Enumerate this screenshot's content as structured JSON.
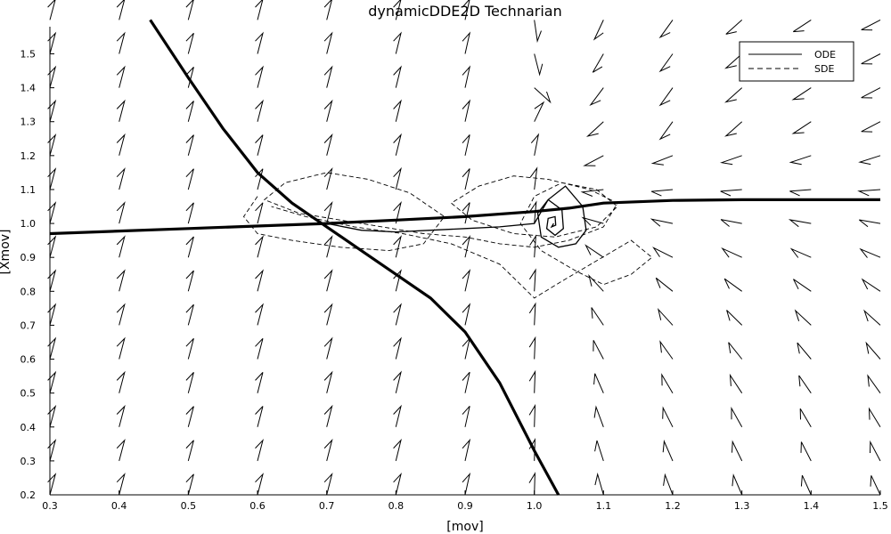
{
  "chart_data": {
    "type": "line",
    "title": "dynamicDDE2D Technarian",
    "xlabel": "[mov]",
    "ylabel": "[Xmov]",
    "xlim": [
      0.3,
      1.5
    ],
    "ylim": [
      0.2,
      1.58
    ],
    "xticks": [
      "0.3",
      "0.4",
      "0.5",
      "0.6",
      "0.7",
      "0.8",
      "0.9",
      "1.0",
      "1.1",
      "1.2",
      "1.3",
      "1.4",
      "1.5"
    ],
    "yticks": [
      "0.2",
      "0.3",
      "0.4",
      "0.5",
      "0.6",
      "0.7",
      "0.8",
      "0.9",
      "1.0",
      "1.1",
      "1.2",
      "1.3",
      "1.4",
      "1.5"
    ],
    "grid": false,
    "legend": {
      "position": "top-right",
      "entries": [
        {
          "label": "ODE",
          "style": "solid"
        },
        {
          "label": "SDE",
          "style": "dashed"
        }
      ]
    },
    "nullclines": [
      {
        "x": [
          0.3,
          0.5,
          0.7,
          0.8,
          0.9,
          1.0,
          1.05,
          1.1,
          1.2,
          1.3,
          1.4,
          1.5
        ],
        "y": [
          0.97,
          0.985,
          1.0,
          1.01,
          1.02,
          1.035,
          1.045,
          1.06,
          1.068,
          1.07,
          1.07,
          1.07
        ]
      },
      {
        "x": [
          0.445,
          0.5,
          0.55,
          0.6,
          0.65,
          0.7,
          0.75,
          0.8,
          0.85,
          0.9,
          0.95,
          1.0,
          1.035
        ],
        "y": [
          1.6,
          1.43,
          1.28,
          1.15,
          1.06,
          0.99,
          0.92,
          0.85,
          0.78,
          0.68,
          0.53,
          0.33,
          0.2
        ]
      }
    ],
    "series": [
      {
        "name": "ODE",
        "x": [
          0.7,
          0.75,
          0.8,
          0.85,
          0.9,
          0.95,
          1.0,
          1.02,
          1.045,
          1.07,
          1.075,
          1.06,
          1.035,
          1.01,
          1.005,
          1.02,
          1.04,
          1.042,
          1.03,
          1.018,
          1.02,
          1.03,
          1.031,
          1.025,
          1.028
        ],
        "y": [
          1.0,
          0.98,
          0.975,
          0.98,
          0.985,
          0.99,
          1.0,
          1.07,
          1.11,
          1.05,
          0.98,
          0.94,
          0.93,
          0.96,
          1.03,
          1.07,
          1.04,
          0.985,
          0.965,
          0.985,
          1.015,
          1.02,
          0.995,
          0.99,
          1.0
        ]
      },
      {
        "name": "SDE",
        "x": [
          0.6,
          0.58,
          0.6,
          0.65,
          0.72,
          0.79,
          0.84,
          0.87,
          0.82,
          0.76,
          0.7,
          0.64,
          0.61,
          0.66,
          0.72,
          0.78,
          0.84,
          0.9,
          0.95,
          1.0,
          1.05,
          1.1,
          1.12,
          1.08,
          1.02,
          0.97,
          0.92,
          0.88,
          0.91,
          0.97,
          1.03,
          1.09,
          1.12,
          1.09,
          1.04,
          1.0,
          0.98,
          1.01,
          1.06,
          1.1,
          1.14,
          1.17,
          1.14,
          1.09,
          1.04,
          1.0,
          0.95,
          0.88,
          0.81,
          0.74,
          0.67,
          0.62
        ],
        "y": [
          1.08,
          1.02,
          0.97,
          0.95,
          0.93,
          0.92,
          0.94,
          1.02,
          1.09,
          1.13,
          1.15,
          1.12,
          1.07,
          1.03,
          1.01,
          0.99,
          0.97,
          0.96,
          0.94,
          0.93,
          0.95,
          0.99,
          1.06,
          1.1,
          1.13,
          1.14,
          1.11,
          1.06,
          1.01,
          0.97,
          0.96,
          0.99,
          1.05,
          1.1,
          1.12,
          1.08,
          1.0,
          0.92,
          0.86,
          0.82,
          0.85,
          0.9,
          0.95,
          0.89,
          0.83,
          0.78,
          0.88,
          0.94,
          0.97,
          0.99,
          1.02,
          1.05
        ]
      }
    ]
  }
}
